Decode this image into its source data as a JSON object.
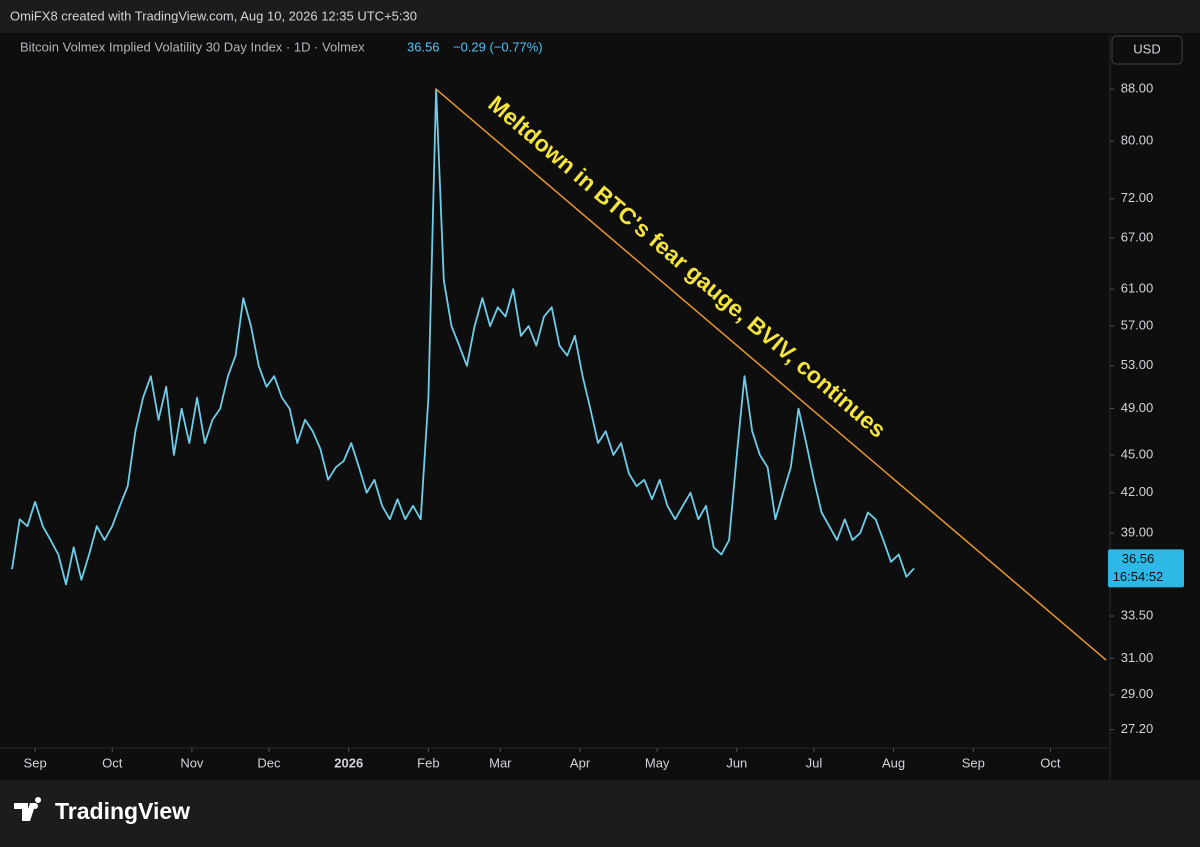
{
  "header": {
    "credit": "OmiFX8 created with TradingView.com, Aug 10, 2026 12:35 UTC+5:30",
    "symbol": "Bitcoin Volmex Implied Volatility 30 Day Index · 1D · Volmex",
    "change": "−0.29 (−0.77%)",
    "currency": "USD",
    "countdown": "16:54:52",
    "brand": "TradingView"
  },
  "chart_data": {
    "type": "line",
    "log_scale": true,
    "grid": false,
    "color": "#6ecde8",
    "values": [
      36.5,
      40,
      39.5,
      41.3,
      39.5,
      38.5,
      37.5,
      35.5,
      38,
      35.8,
      37.5,
      39.5,
      38.5,
      39.5,
      41,
      42.5,
      47,
      50,
      52,
      48,
      51,
      45,
      49,
      46,
      50,
      46,
      48,
      49,
      52,
      54,
      60,
      57,
      53,
      51,
      52,
      50,
      49,
      46,
      48,
      47,
      45.5,
      43,
      44,
      44.5,
      46,
      44,
      42,
      43,
      41,
      40,
      41.5,
      40,
      41,
      40,
      50,
      88,
      62,
      57,
      55,
      53,
      57,
      60,
      57,
      59,
      58,
      61,
      56,
      57,
      55,
      58,
      59,
      55,
      54,
      56,
      52,
      49,
      46,
      47,
      45,
      46,
      43.5,
      42.5,
      43,
      41.5,
      43,
      41,
      40,
      41,
      42,
      40,
      41,
      38,
      37.5,
      38.5,
      45,
      52,
      47,
      45,
      44,
      40,
      42,
      44,
      49,
      46,
      43,
      40.5,
      39.5,
      38.5,
      40,
      38.5,
      39,
      40.5,
      40,
      38.5,
      37,
      37.5,
      36,
      36.56
    ],
    "xlim": [
      0,
      142.4
    ],
    "xticks": [
      {
        "value": 3,
        "label": "Sep"
      },
      {
        "value": 13,
        "label": "Oct"
      },
      {
        "value": 23.33,
        "label": "Nov"
      },
      {
        "value": 33.33,
        "label": "Dec"
      },
      {
        "value": 43.67,
        "label": "2026"
      },
      {
        "value": 54,
        "label": "Feb"
      },
      {
        "value": 63.33,
        "label": "Mar"
      },
      {
        "value": 73.67,
        "label": "Apr"
      },
      {
        "value": 83.67,
        "label": "May"
      },
      {
        "value": 94,
        "label": "Jun"
      },
      {
        "value": 104,
        "label": "Jul"
      },
      {
        "value": 114.33,
        "label": "Aug"
      },
      {
        "value": 124.67,
        "label": "Sep"
      },
      {
        "value": 134.67,
        "label": "Oct"
      }
    ],
    "ylim": [
      26.3,
      97.2
    ],
    "yticks": [
      {
        "value": 88,
        "label": "88.00"
      },
      {
        "value": 80,
        "label": "80.00"
      },
      {
        "value": 72,
        "label": "72.00"
      },
      {
        "value": 67,
        "label": "67.00"
      },
      {
        "value": 61,
        "label": "61.00"
      },
      {
        "value": 57,
        "label": "57.00"
      },
      {
        "value": 53,
        "label": "53.00"
      },
      {
        "value": 49,
        "label": "49.00"
      },
      {
        "value": 45,
        "label": "45.00"
      },
      {
        "value": 42,
        "label": "42.00"
      },
      {
        "value": 39,
        "label": "39.00"
      },
      {
        "value": 33.5,
        "label": "33.50"
      },
      {
        "value": 31,
        "label": "31.00"
      },
      {
        "value": 29,
        "label": "29.00"
      },
      {
        "value": 27.2,
        "label": "27.20"
      }
    ],
    "trendline": {
      "x": [
        55,
        141.9
      ],
      "values": [
        88,
        30.9
      ],
      "color": "#e8962e"
    },
    "annotation": "Meltdown in BTC's fear gauge, BVIV, continues"
  }
}
